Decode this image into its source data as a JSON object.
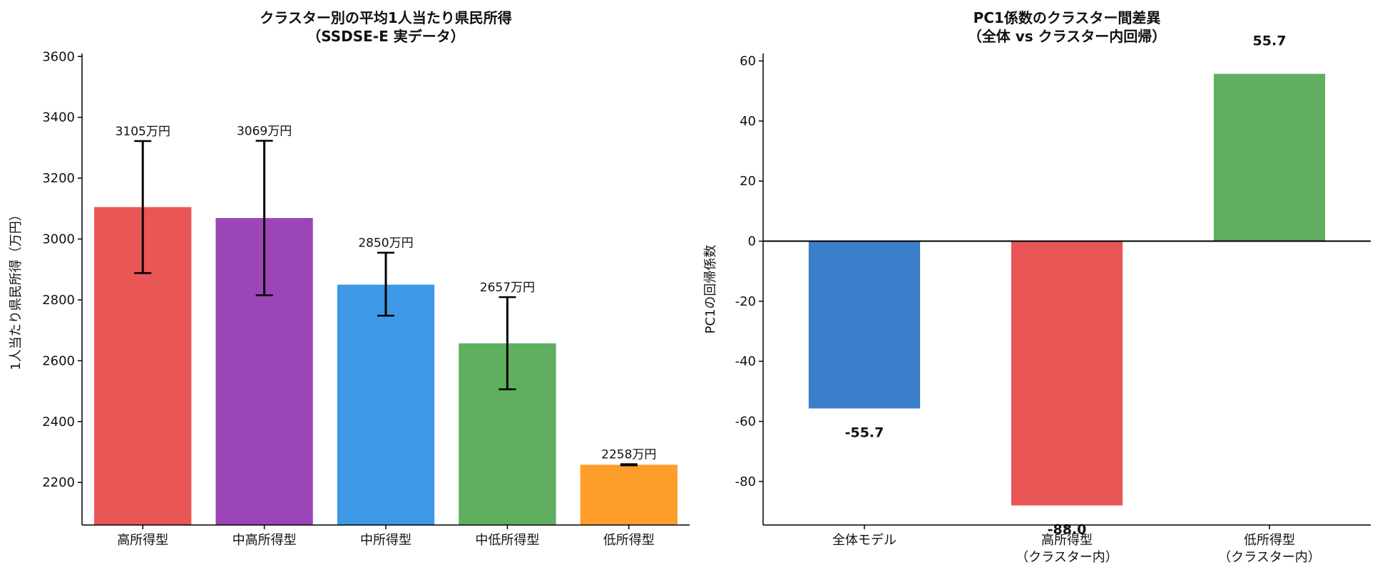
{
  "chart_data": [
    {
      "type": "bar",
      "title": [
        "クラスター別の平均1人当たり県民所得",
        "（SSDSE-E 実データ）"
      ],
      "xlabel": "",
      "ylabel": "1人当たり県民所得（万円）",
      "ylim": [
        2060,
        3610
      ],
      "yticks": [
        2200,
        2400,
        2600,
        2800,
        3000,
        3200,
        3400,
        3600
      ],
      "grid": false,
      "categories": [
        "高所得型",
        "中高所得型",
        "中所得型",
        "中低所得型",
        "低所得型"
      ],
      "values": [
        3105,
        3069,
        2850,
        2657,
        2258
      ],
      "error_low": [
        2888,
        2815,
        2748,
        2506,
        2256
      ],
      "error_high": [
        3322,
        3323,
        2955,
        2809,
        2260
      ],
      "value_labels": [
        "3105万円",
        "3069万円",
        "2850万円",
        "2657万円",
        "2258万円"
      ],
      "colors": [
        "#e85656",
        "#9c45b6",
        "#3f99e6",
        "#60ae60",
        "#fd9e2b"
      ]
    },
    {
      "type": "bar",
      "title": [
        "PC1係数のクラスター間差異",
        "（全体 vs クラスター内回帰）"
      ],
      "xlabel": "",
      "ylabel": "PC1の回帰係数",
      "ylim": [
        -94.5,
        62.5
      ],
      "yticks": [
        -80,
        -60,
        -40,
        -20,
        0,
        20,
        40,
        60
      ],
      "grid": false,
      "categories": [
        [
          "全体モデル"
        ],
        [
          "高所得型",
          "（クラスター内）"
        ],
        [
          "低所得型",
          "（クラスター内）"
        ]
      ],
      "values": [
        -55.7,
        -88.0,
        55.7
      ],
      "value_labels": [
        "-55.7",
        "-88.0",
        "55.7"
      ],
      "colors": [
        "#3a7dc9",
        "#e85656",
        "#60ae60"
      ]
    }
  ]
}
